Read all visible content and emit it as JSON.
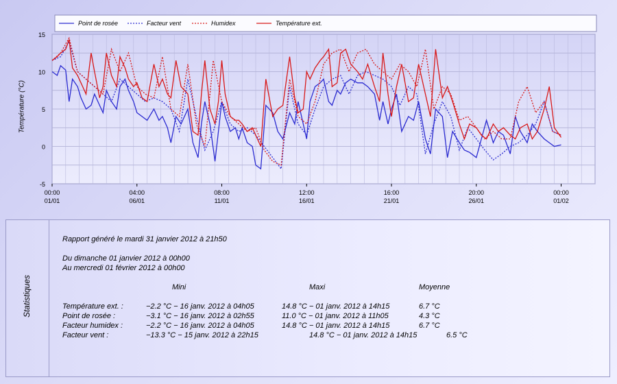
{
  "chart_data": {
    "type": "line",
    "ylabel": "Température (°C)",
    "ylim": [
      -5,
      15
    ],
    "yticks": [
      "15",
      "10",
      "5",
      "0",
      "-5"
    ],
    "xlim": [
      0,
      32
    ],
    "xticks": [
      {
        "x": 0,
        "time": "00:00",
        "date": "01/01"
      },
      {
        "x": 5,
        "time": "04:00",
        "date": "06/01"
      },
      {
        "x": 10,
        "time": "08:00",
        "date": "11/01"
      },
      {
        "x": 15,
        "time": "12:00",
        "date": "16/01"
      },
      {
        "x": 20,
        "time": "16:00",
        "date": "21/01"
      },
      {
        "x": 25,
        "time": "20:00",
        "date": "26/01"
      },
      {
        "x": 30,
        "time": "00:00",
        "date": "01/02"
      }
    ],
    "grid": true,
    "legend_position": "top",
    "series": [
      {
        "name": "Point de rosée",
        "color": "#2a2ad0",
        "dash": "solid",
        "x": [
          0,
          0.3,
          0.5,
          0.8,
          1,
          1.2,
          1.5,
          1.7,
          2,
          2.3,
          2.5,
          2.8,
          3,
          3.2,
          3.5,
          3.8,
          4,
          4.3,
          4.5,
          4.8,
          5,
          5.3,
          5.6,
          6,
          6.3,
          6.5,
          6.8,
          7,
          7.3,
          7.6,
          8,
          8.3,
          8.6,
          8.8,
          9,
          9.3,
          9.6,
          9.8,
          10,
          10.2,
          10.5,
          10.8,
          11,
          11.2,
          11.5,
          11.8,
          12,
          12.3,
          12.6,
          13,
          13.3,
          13.6,
          14,
          14.3,
          14.5,
          14.8,
          15,
          15.2,
          15.5,
          15.8,
          16,
          16.3,
          16.5,
          16.8,
          17,
          17.3,
          17.6,
          18,
          18.3,
          18.6,
          19,
          19.3,
          19.5,
          19.8,
          20,
          20.3,
          20.6,
          21,
          21.3,
          21.6,
          22,
          22.3,
          22.6,
          23,
          23.3,
          23.6,
          24,
          24.3,
          24.6,
          25,
          25.3,
          25.6,
          26,
          26.3,
          26.6,
          27,
          27.3,
          27.6,
          28,
          28.3,
          28.6,
          29,
          29.3,
          29.6,
          30
        ],
        "y": [
          10,
          9.5,
          10.8,
          10.2,
          6,
          9,
          8,
          6.5,
          5,
          5.5,
          7,
          5.5,
          4.5,
          7.5,
          6,
          5,
          8,
          9,
          7.5,
          6,
          4.5,
          4,
          3.5,
          5,
          3.5,
          4,
          2.5,
          0.5,
          4,
          3,
          5,
          0.5,
          -1.5,
          3,
          6,
          3,
          -2,
          2,
          6,
          4,
          2,
          2.5,
          1,
          2.5,
          0.5,
          0,
          -2.5,
          -3,
          5.5,
          4.5,
          2,
          1,
          4.5,
          3,
          6,
          3,
          1,
          6,
          8,
          8.5,
          9,
          6,
          5.5,
          7.5,
          7,
          8.5,
          9,
          8.5,
          8.5,
          8,
          7,
          3.5,
          6,
          3,
          5,
          7,
          2,
          4,
          3.5,
          6,
          1,
          -1,
          5,
          4,
          -1.5,
          2,
          0.5,
          -0.5,
          -0.8,
          -1.5,
          1,
          3.5,
          0.5,
          2,
          1.5,
          -1,
          4,
          2,
          0.5,
          3,
          2,
          1,
          0.5,
          0,
          0.2
        ]
      },
      {
        "name": "Facteur vent",
        "color": "#2a2ad0",
        "dash": "dashed",
        "x": [
          0,
          0.5,
          1,
          1.5,
          2,
          2.5,
          3,
          3.5,
          4,
          4.5,
          5,
          5.5,
          6,
          6.5,
          7,
          7.5,
          8,
          8.5,
          9,
          9.5,
          10,
          10.5,
          11,
          11.5,
          12,
          12.5,
          13,
          13.5,
          14,
          14.5,
          15,
          15.5,
          16,
          16.5,
          17,
          17.5,
          18,
          18.5,
          19,
          19.5,
          20,
          20.5,
          21,
          21.5,
          22,
          22.5,
          23,
          23.5,
          24,
          24.5,
          25,
          25.5,
          26,
          26.5,
          27,
          27.5,
          28,
          28.5,
          29,
          29.5,
          30
        ],
        "y": [
          11.5,
          12,
          14,
          10,
          9,
          8,
          7,
          6,
          9,
          8,
          7,
          6,
          6.5,
          6,
          5,
          2,
          9,
          4,
          -0.5,
          2,
          6,
          3,
          2,
          2.5,
          1.5,
          0,
          -1.5,
          -3,
          8,
          3,
          1.5,
          5,
          8,
          9,
          9.5,
          7,
          9.5,
          10,
          9.5,
          9,
          8,
          5.5,
          8,
          7,
          -1,
          3,
          6,
          4,
          -0.5,
          2.5,
          1,
          -0.5,
          -1.8,
          -1,
          0,
          0.5,
          1.5,
          3,
          6,
          2,
          1.5
        ]
      },
      {
        "name": "Humidex",
        "color": "#d81818",
        "dash": "dashed",
        "x": [
          0,
          0.5,
          1,
          1.5,
          2,
          2.5,
          3,
          3.5,
          4,
          4.5,
          5,
          5.5,
          6,
          6.5,
          7,
          7.5,
          8,
          8.5,
          9,
          9.5,
          10,
          10.5,
          11,
          11.5,
          12,
          12.5,
          13,
          13.5,
          14,
          14.5,
          15,
          15.5,
          16,
          16.5,
          17,
          17.5,
          18,
          18.5,
          19,
          19.5,
          20,
          20.5,
          21,
          21.5,
          22,
          22.5,
          23,
          23.5,
          24,
          24.5,
          25,
          25.5,
          26,
          26.5,
          27,
          27.5,
          28,
          28.5,
          29,
          29.5,
          30
        ],
        "y": [
          11.5,
          12.5,
          14.5,
          10,
          9,
          8,
          7,
          13,
          10,
          12.5,
          8,
          7,
          6.5,
          12,
          5,
          4,
          11,
          3,
          0,
          11.5,
          6,
          4,
          3,
          2,
          2.5,
          -0.5,
          -2,
          -2.5,
          9,
          4,
          3,
          6,
          11,
          12.5,
          13,
          10,
          12.5,
          13,
          11,
          10,
          9,
          11,
          10,
          8,
          13,
          5,
          8,
          7,
          3.5,
          4,
          2.5,
          1,
          2,
          1,
          1,
          6,
          8,
          4.5,
          6,
          2,
          1.5
        ]
      },
      {
        "name": "Température ext.",
        "color": "#d81818",
        "dash": "solid",
        "x": [
          0,
          0.3,
          0.5,
          0.8,
          1,
          1.2,
          1.5,
          1.7,
          2,
          2.3,
          2.5,
          2.8,
          3,
          3.2,
          3.5,
          3.8,
          4,
          4.3,
          4.5,
          4.8,
          5,
          5.3,
          5.6,
          6,
          6.3,
          6.5,
          6.8,
          7,
          7.3,
          7.6,
          8,
          8.3,
          8.6,
          8.8,
          9,
          9.3,
          9.6,
          9.8,
          10,
          10.2,
          10.5,
          10.8,
          11,
          11.2,
          11.5,
          11.8,
          12,
          12.3,
          12.6,
          13,
          13.3,
          13.6,
          14,
          14.3,
          14.5,
          14.8,
          15,
          15.2,
          15.5,
          15.8,
          16,
          16.3,
          16.5,
          16.8,
          17,
          17.3,
          17.6,
          18,
          18.3,
          18.6,
          19,
          19.3,
          19.5,
          19.8,
          20,
          20.3,
          20.6,
          21,
          21.3,
          21.6,
          22,
          22.3,
          22.6,
          23,
          23.3,
          23.6,
          24,
          24.3,
          24.6,
          25,
          25.3,
          25.6,
          26,
          26.3,
          26.6,
          27,
          27.3,
          27.6,
          28,
          28.3,
          28.6,
          29,
          29.3,
          29.6,
          30
        ],
        "y": [
          11.5,
          12,
          12.5,
          13,
          14.3,
          10.5,
          9.5,
          8.5,
          7,
          12.5,
          10,
          6.5,
          8,
          12.5,
          9.5,
          8,
          12,
          10.5,
          9,
          8,
          8.5,
          6.5,
          6,
          11,
          8,
          9,
          7,
          6.5,
          11.5,
          8,
          7,
          2,
          1.5,
          7,
          11.5,
          5,
          3,
          6,
          11.5,
          7,
          4,
          3.5,
          3.5,
          3,
          2,
          2.5,
          1.5,
          0,
          9,
          4,
          5,
          5.5,
          12,
          6.5,
          4.5,
          5,
          10,
          9,
          10.5,
          11.5,
          12,
          13,
          8,
          8.5,
          12.5,
          13,
          11,
          10,
          9,
          11,
          8,
          6,
          12.5,
          7,
          4,
          8,
          11,
          6,
          6.5,
          11,
          7,
          4,
          13,
          6.5,
          8,
          6,
          3,
          1,
          3,
          2.5,
          1.5,
          1,
          3,
          2,
          2.5,
          1.5,
          1,
          2.5,
          3,
          1,
          2,
          5,
          8,
          2.5,
          1.2
        ]
      }
    ]
  },
  "stats": {
    "side_label": "Statistiques",
    "report_line": "Rapport généré le mardi 31 janvier 2012 à 21h50",
    "range_from": "Du dimanche 01 janvier 2012 à 00h00",
    "range_to": "Au mercredi 01 février 2012 à 00h00",
    "col_min": "Mini",
    "col_max": "Maxi",
    "col_avg": "Moyenne",
    "rows": [
      {
        "label": "Température ext. :",
        "min": "−2.2 °C − 16 janv. 2012 à 04h05",
        "max": "14.8 °C − 01 janv. 2012 à 14h15",
        "avg": "6.7 °C"
      },
      {
        "label": "Point de rosée :",
        "min": "−3.1 °C − 16 janv. 2012 à 02h55",
        "max": "11.0 °C − 01 janv. 2012 à 11h05",
        "avg": "4.3 °C"
      },
      {
        "label": "Facteur humidex :",
        "min": "−2.2 °C − 16 janv. 2012 à 04h05",
        "max": "14.8 °C − 01 janv. 2012 à 14h15",
        "avg": "6.7 °C"
      },
      {
        "label": "Facteur vent :",
        "min": "−13.3 °C − 15 janv. 2012 à 22h15",
        "max": "14.8 °C − 01 janv. 2012 à 14h15",
        "avg": "6.5 °C"
      }
    ]
  }
}
